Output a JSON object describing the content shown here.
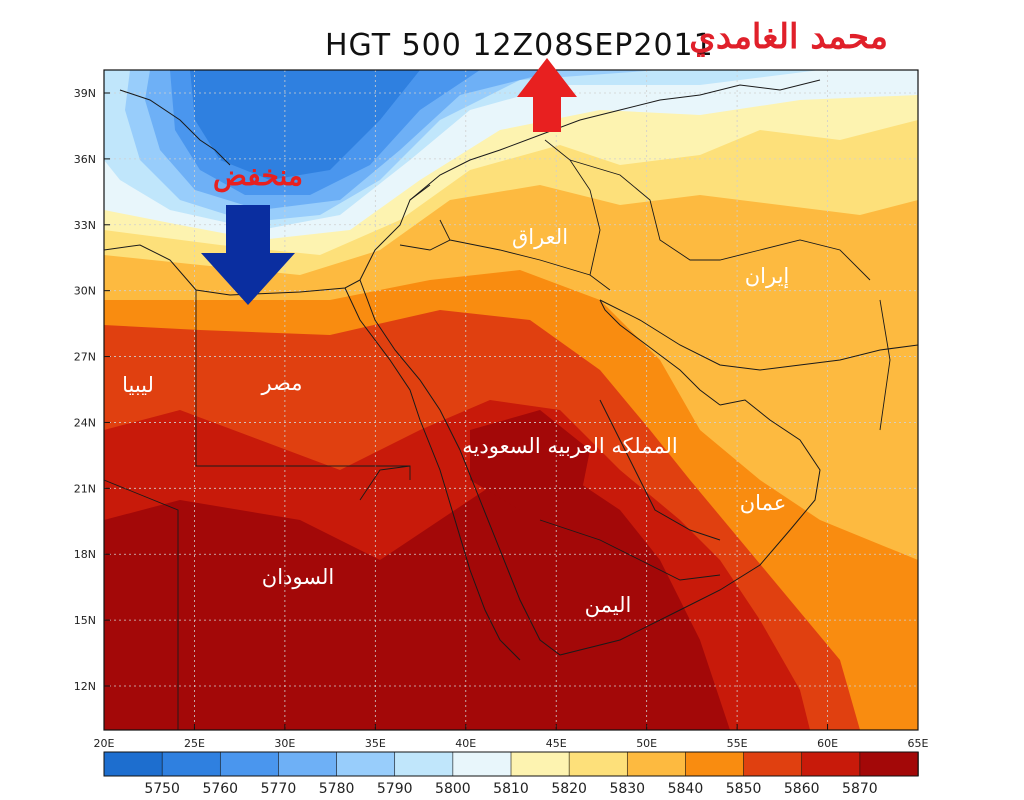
{
  "map": {
    "title": "HGT 500 12Z08SEP2011",
    "author": "محمد الغامدي",
    "low_label": "منخفض",
    "lon_ticks": [
      "20E",
      "25E",
      "30E",
      "35E",
      "40E",
      "45E",
      "50E",
      "55E",
      "60E",
      "65E"
    ],
    "lat_ticks": [
      "12N",
      "15N",
      "18N",
      "21N",
      "24N",
      "27N",
      "30N",
      "33N",
      "36N",
      "39N"
    ],
    "colorbar": {
      "labels": [
        "5750",
        "5760",
        "5770",
        "5780",
        "5790",
        "5800",
        "5810",
        "5820",
        "5830",
        "5840",
        "5850",
        "5860",
        "5870"
      ],
      "colors": [
        "#1d6ecf",
        "#2f80e0",
        "#4a96ee",
        "#6eb0f6",
        "#98cdfb",
        "#c0e6fb",
        "#e8f6fb",
        "#fdf3b0",
        "#fde07a",
        "#fdba40",
        "#f98c10",
        "#e04010",
        "#c81a0a",
        "#a30808"
      ]
    },
    "labels": {
      "libya": "ليبيا",
      "egypt": "مصر",
      "iraq": "العراق",
      "iran": "إيران",
      "saudi": "المملكه العربيه السعوديه",
      "oman": "عمان",
      "sudan": "السودان",
      "yemen": "اليمن"
    },
    "arrows": {
      "low_arrow_color": "#0a2ea0",
      "ridge_arrow_color": "#e82020"
    }
  }
}
